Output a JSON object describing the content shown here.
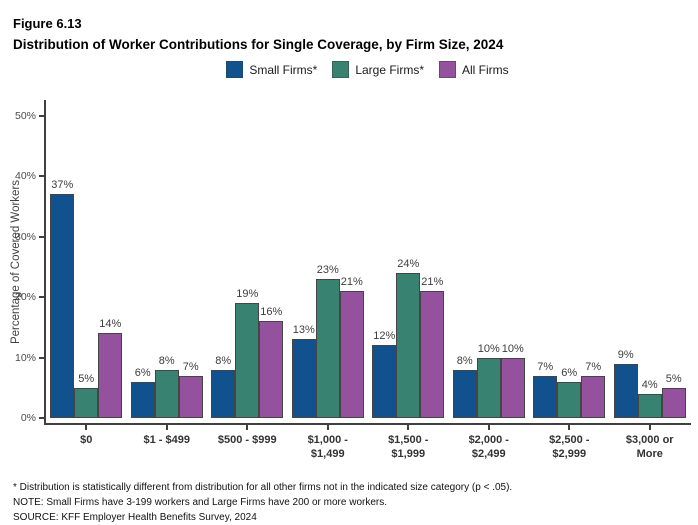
{
  "figure_label": "Figure 6.13",
  "title": "Distribution of Worker Contributions for Single Coverage, by Firm Size, 2024",
  "chart_data": {
    "type": "bar",
    "title": "Distribution of Worker Contributions for Single Coverage, by Firm Size, 2024",
    "ylabel": "Percentage of Covered Workers",
    "xlabel": "",
    "ylim": [
      0,
      52
    ],
    "grid": false,
    "legend_position": "top",
    "ytick_labels": [
      "0%",
      "10%",
      "20%",
      "30%",
      "40%",
      "50%"
    ],
    "ytick_values": [
      0,
      10,
      20,
      30,
      40,
      50
    ],
    "categories": [
      "$0",
      "$1 - $499",
      "$500 - $999",
      "$1,000 -\n$1,499",
      "$1,500 -\n$1,999",
      "$2,000 -\n$2,499",
      "$2,500 -\n$2,999",
      "$3,000 or\nMore"
    ],
    "series": [
      {
        "name": "Small Firms*",
        "color": "#11528E",
        "values": [
          37,
          6,
          8,
          13,
          12,
          8,
          7,
          9
        ]
      },
      {
        "name": "Large Firms*",
        "color": "#388272",
        "values": [
          5,
          8,
          19,
          23,
          24,
          10,
          6,
          4
        ]
      },
      {
        "name": "All Firms",
        "color": "#94519E",
        "values": [
          14,
          7,
          16,
          21,
          21,
          10,
          7,
          5
        ]
      }
    ],
    "value_label_suffix": "%"
  },
  "footnotes": [
    "* Distribution is statistically different from distribution for all other firms not in the indicated size category (p < .05).",
    "NOTE: Small Firms have 3-199 workers and Large Firms have 200 or more workers.",
    "SOURCE: KFF Employer Health Benefits Survey, 2024"
  ],
  "colors": {
    "small_firms": "#11528E",
    "large_firms": "#388272",
    "all_firms": "#94519E",
    "axis": "#404040"
  }
}
